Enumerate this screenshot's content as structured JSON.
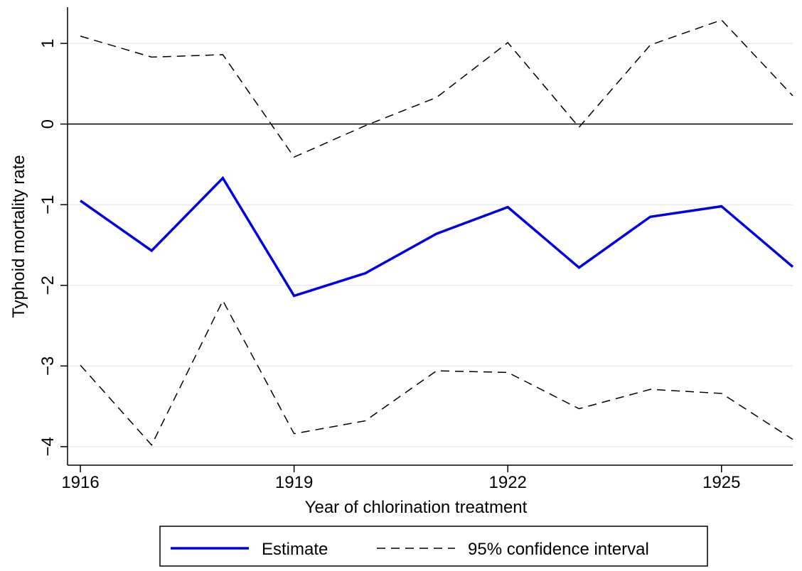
{
  "chart_data": {
    "type": "line",
    "x_label": "Year of chlorination treatment",
    "y_label": "Typhoid mortality rate",
    "x": [
      1916,
      1917,
      1918,
      1919,
      1920,
      1921,
      1922,
      1923,
      1924,
      1925,
      1926
    ],
    "series": [
      {
        "name": "Estimate",
        "color": "#0000e6",
        "style": "solid",
        "values": [
          -0.95,
          -1.57,
          -0.67,
          -2.13,
          -1.85,
          -1.36,
          -1.03,
          -1.78,
          -1.15,
          -1.02,
          -1.77
        ]
      },
      {
        "name": "95% confidence interval",
        "color": "#000000",
        "style": "dashed",
        "upper": [
          1.09,
          0.83,
          0.86,
          -0.41,
          -0.02,
          0.33,
          1.01,
          -0.04,
          0.98,
          1.29,
          0.35
        ],
        "lower": [
          -2.99,
          -3.98,
          -2.19,
          -3.84,
          -3.68,
          -3.06,
          -3.08,
          -3.53,
          -3.29,
          -3.34,
          -3.91
        ]
      }
    ],
    "xlim": [
      1915.82,
      1926
    ],
    "xticks": [
      1916,
      1919,
      1922,
      1925
    ],
    "ylim": [
      -4.23,
      1.45
    ],
    "yticks": [
      {
        "value": -4,
        "label": "−4"
      },
      {
        "value": -3,
        "label": "−3"
      },
      {
        "value": -2,
        "label": "−2"
      },
      {
        "value": -1,
        "label": "−1"
      },
      0,
      1
    ],
    "hline": 0,
    "grid": true,
    "legend": "bottom"
  }
}
